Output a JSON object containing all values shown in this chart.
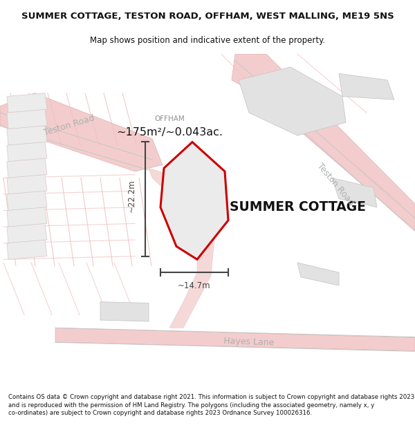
{
  "title": "SUMMER COTTAGE, TESTON ROAD, OFFHAM, WEST MALLING, ME19 5NS",
  "subtitle": "Map shows position and indicative extent of the property.",
  "footer": "Contains OS data © Crown copyright and database right 2021. This information is subject to Crown copyright and database rights 2023 and is reproduced with the permission of HM Land Registry. The polygons (including the associated geometry, namely x, y co-ordinates) are subject to Crown copyright and database rights 2023 Ordnance Survey 100026316.",
  "property_label": "SUMMER COTTAGE",
  "area_label": "~175m²/~0.043ac.",
  "locality_label": "OFFHAM",
  "dim_height": "~22.2m",
  "dim_width": "~14.7m",
  "bg_color": "#ffffff",
  "road_pink": "#f5c5c5",
  "road_edge": "#e8a8a8",
  "block_fill": "#e8e8e8",
  "block_edge": "#cccccc",
  "plot_outline": "#cc0000",
  "plot_fill": "#ebebeb",
  "dim_color": "#444444",
  "road_text": "#b0b0b0",
  "map_bg": "#f7f7f7",
  "figsize": [
    6.0,
    6.25
  ],
  "dpi": 100
}
